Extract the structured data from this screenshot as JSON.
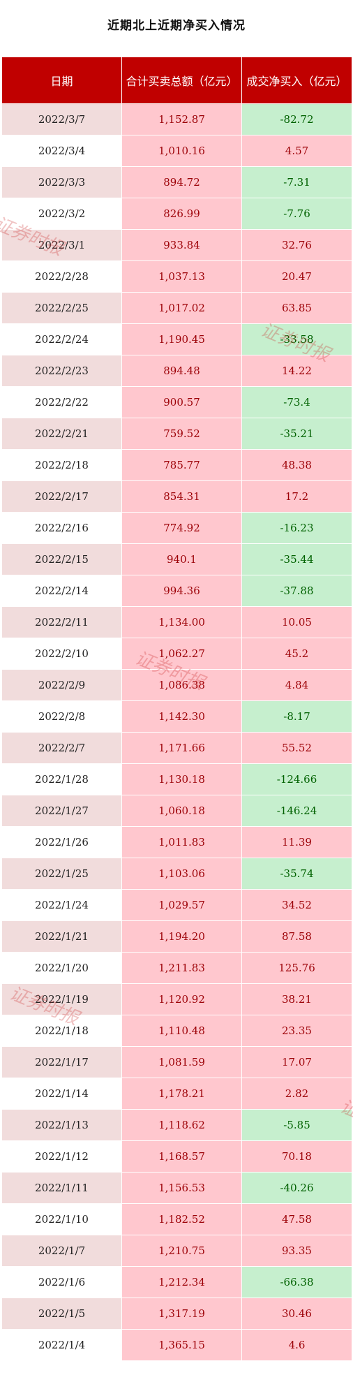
{
  "title": "近期北上近期净买入情况",
  "headers": [
    "日期",
    "合计买卖总额（亿元）",
    "成交净买入（亿元）"
  ],
  "watermark": "证券时报",
  "colors": {
    "header": "#c00000",
    "positive_fill": "#ffc7ce",
    "negative_fill": "#c6efce"
  },
  "rows": [
    {
      "date": "2022/3/7",
      "total": "1,152.87",
      "net": "-82.72"
    },
    {
      "date": "2022/3/4",
      "total": "1,010.16",
      "net": "4.57"
    },
    {
      "date": "2022/3/3",
      "total": "894.72",
      "net": "-7.31"
    },
    {
      "date": "2022/3/2",
      "total": "826.99",
      "net": "-7.76"
    },
    {
      "date": "2022/3/1",
      "total": "933.84",
      "net": "32.76"
    },
    {
      "date": "2022/2/28",
      "total": "1,037.13",
      "net": "20.47"
    },
    {
      "date": "2022/2/25",
      "total": "1,017.02",
      "net": "63.85"
    },
    {
      "date": "2022/2/24",
      "total": "1,190.45",
      "net": "-33.58"
    },
    {
      "date": "2022/2/23",
      "total": "894.48",
      "net": "14.22"
    },
    {
      "date": "2022/2/22",
      "total": "900.57",
      "net": "-73.4"
    },
    {
      "date": "2022/2/21",
      "total": "759.52",
      "net": "-35.21"
    },
    {
      "date": "2022/2/18",
      "total": "785.77",
      "net": "48.38"
    },
    {
      "date": "2022/2/17",
      "total": "854.31",
      "net": "17.2"
    },
    {
      "date": "2022/2/16",
      "total": "774.92",
      "net": "-16.23"
    },
    {
      "date": "2022/2/15",
      "total": "940.1",
      "net": "-35.44"
    },
    {
      "date": "2022/2/14",
      "total": "994.36",
      "net": "-37.88"
    },
    {
      "date": "2022/2/11",
      "total": "1,134.00",
      "net": "10.05"
    },
    {
      "date": "2022/2/10",
      "total": "1,062.27",
      "net": "45.2"
    },
    {
      "date": "2022/2/9",
      "total": "1,086.38",
      "net": "4.84"
    },
    {
      "date": "2022/2/8",
      "total": "1,142.30",
      "net": "-8.17"
    },
    {
      "date": "2022/2/7",
      "total": "1,171.66",
      "net": "55.52"
    },
    {
      "date": "2022/1/28",
      "total": "1,130.18",
      "net": "-124.66"
    },
    {
      "date": "2022/1/27",
      "total": "1,060.18",
      "net": "-146.24"
    },
    {
      "date": "2022/1/26",
      "total": "1,011.83",
      "net": "11.39"
    },
    {
      "date": "2022/1/25",
      "total": "1,103.06",
      "net": "-35.74"
    },
    {
      "date": "2022/1/24",
      "total": "1,029.57",
      "net": "34.52"
    },
    {
      "date": "2022/1/21",
      "total": "1,194.20",
      "net": "87.58"
    },
    {
      "date": "2022/1/20",
      "total": "1,211.83",
      "net": "125.76"
    },
    {
      "date": "2022/1/19",
      "total": "1,120.92",
      "net": "38.21"
    },
    {
      "date": "2022/1/18",
      "total": "1,110.48",
      "net": "23.35"
    },
    {
      "date": "2022/1/17",
      "total": "1,081.59",
      "net": "17.07"
    },
    {
      "date": "2022/1/14",
      "total": "1,178.21",
      "net": "2.82"
    },
    {
      "date": "2022/1/13",
      "total": "1,118.62",
      "net": "-5.85"
    },
    {
      "date": "2022/1/12",
      "total": "1,168.57",
      "net": "70.18"
    },
    {
      "date": "2022/1/11",
      "total": "1,156.53",
      "net": "-40.26"
    },
    {
      "date": "2022/1/10",
      "total": "1,182.52",
      "net": "47.58"
    },
    {
      "date": "2022/1/7",
      "total": "1,210.75",
      "net": "93.35"
    },
    {
      "date": "2022/1/6",
      "total": "1,212.34",
      "net": "-66.38"
    },
    {
      "date": "2022/1/5",
      "total": "1,317.19",
      "net": "30.46"
    },
    {
      "date": "2022/1/4",
      "total": "1,365.15",
      "net": "4.6"
    }
  ]
}
